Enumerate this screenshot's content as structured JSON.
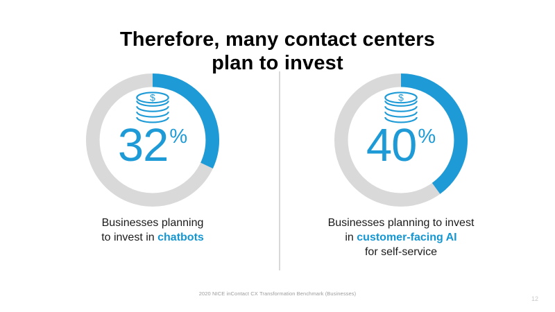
{
  "slide": {
    "title_line1": "Therefore, many contact centers",
    "title_line2": "plan to invest",
    "footer": "2020 NICE inContact CX Transformation Benchmark (Businesses)",
    "page_number": "12"
  },
  "colors": {
    "accent_blue": "#1e9bd6",
    "ring_gray": "#d9d9d9",
    "divider_gray": "#d8d8d8",
    "title_black": "#000000",
    "footer_gray": "#9b9b9b"
  },
  "icons": {
    "coins": {
      "name": "coins-dollar-icon",
      "symbol": "$"
    }
  },
  "chart_data": [
    {
      "type": "pie",
      "subtype": "donut",
      "value": 32,
      "label_number": "32",
      "label_unit": "%",
      "series_color": "#1e9bd6",
      "remainder_color": "#d9d9d9",
      "start_angle_deg": 0,
      "direction": "clockwise",
      "caption_text": "Businesses planning to invest in chatbots",
      "caption_lines": [
        [
          {
            "t": "Businesses planning",
            "h": false
          }
        ],
        [
          {
            "t": "to invest in ",
            "h": false
          },
          {
            "t": "chatbots",
            "h": true
          }
        ]
      ]
    },
    {
      "type": "pie",
      "subtype": "donut",
      "value": 40,
      "label_number": "40",
      "label_unit": "%",
      "series_color": "#1e9bd6",
      "remainder_color": "#d9d9d9",
      "start_angle_deg": 0,
      "direction": "clockwise",
      "caption_text": "Businesses planning to invest in customer-facing AI for self-service",
      "caption_lines": [
        [
          {
            "t": "Businesses planning to invest",
            "h": false
          }
        ],
        [
          {
            "t": "in ",
            "h": false
          },
          {
            "t": "customer-facing AI",
            "h": true
          }
        ],
        [
          {
            "t": "for self-service",
            "h": false
          }
        ]
      ]
    }
  ]
}
